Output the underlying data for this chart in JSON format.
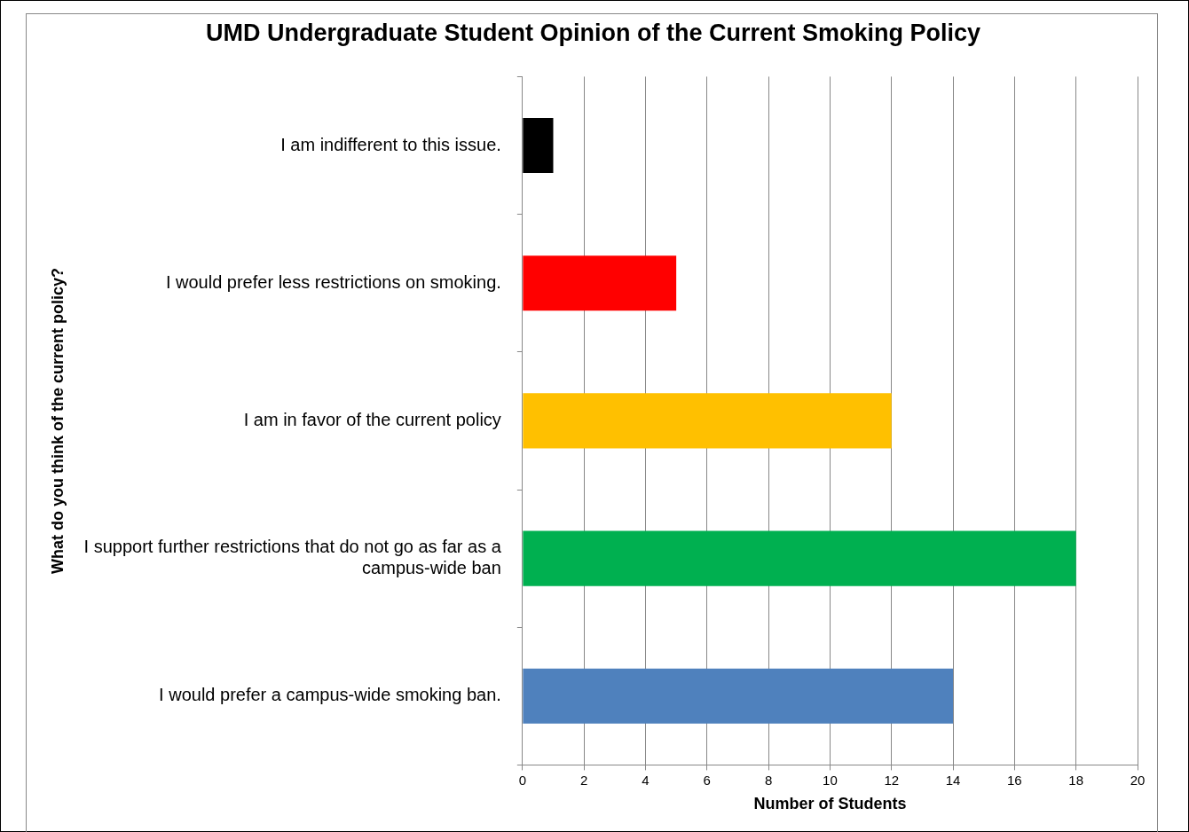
{
  "chart_data": {
    "type": "bar",
    "orientation": "horizontal",
    "title": "UMD Undergraduate Student Opinion of the Current Smoking Policy",
    "xlabel": "Number of Students",
    "ylabel": "What do you think of the current policy?",
    "categories": [
      "I am indifferent to this issue.",
      "I would prefer less restrictions on smoking.",
      "I am in favor of the current policy",
      "I support further restrictions that do not go as far as a campus-wide ban",
      "I would prefer a campus-wide smoking ban."
    ],
    "values": [
      1,
      5,
      12,
      18,
      14
    ],
    "colors": [
      "#000000",
      "#ff0000",
      "#ffc000",
      "#00b050",
      "#4f81bd"
    ],
    "xlim": [
      0,
      20
    ],
    "xticks": [
      0,
      2,
      4,
      6,
      8,
      10,
      12,
      14,
      16,
      18,
      20
    ],
    "grid": "x",
    "legend": false
  }
}
